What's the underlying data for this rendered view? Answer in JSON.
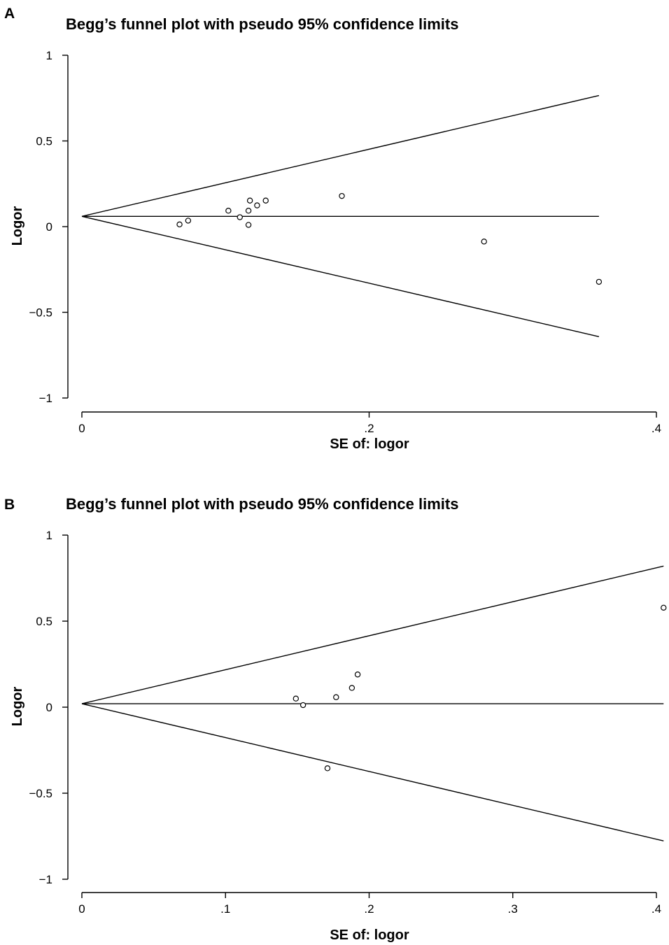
{
  "chart_data": [
    {
      "type": "scatter",
      "panel_label": "A",
      "title": "Begg’s funnel plot with pseudo 95% confidence limits",
      "xlabel": "SE of: logor",
      "ylabel": "Logor",
      "xlim": [
        0,
        0.4
      ],
      "ylim": [
        -1,
        1
      ],
      "x_ticks": [
        0,
        0.2,
        0.4
      ],
      "x_tick_labels": [
        "0",
        ".2",
        ".4"
      ],
      "y_ticks": [
        1,
        0.5,
        0,
        -0.5,
        -1
      ],
      "y_tick_labels": [
        "1",
        "0.5",
        "0",
        "−0.5",
        "−1"
      ],
      "grid": false,
      "pooled_estimate": 0.06,
      "funnel_max_se": 0.36,
      "pseudo_ci_upper_at_max_se": 0.765,
      "pseudo_ci_lower_at_max_se": -0.642,
      "points": [
        {
          "x": 0.068,
          "y": 0.013
        },
        {
          "x": 0.074,
          "y": 0.035
        },
        {
          "x": 0.102,
          "y": 0.093
        },
        {
          "x": 0.11,
          "y": 0.055
        },
        {
          "x": 0.116,
          "y": 0.01
        },
        {
          "x": 0.116,
          "y": 0.093
        },
        {
          "x": 0.117,
          "y": 0.152
        },
        {
          "x": 0.122,
          "y": 0.124
        },
        {
          "x": 0.128,
          "y": 0.152
        },
        {
          "x": 0.181,
          "y": 0.179
        },
        {
          "x": 0.28,
          "y": -0.087
        },
        {
          "x": 0.36,
          "y": -0.322
        }
      ]
    },
    {
      "type": "scatter",
      "panel_label": "B",
      "title": "Begg’s funnel plot with pseudo 95% confidence limits",
      "xlabel": "SE of: logor",
      "ylabel": "Logor",
      "xlim": [
        0,
        0.4
      ],
      "ylim": [
        -1,
        1
      ],
      "x_ticks": [
        0,
        0.1,
        0.2,
        0.3,
        0.4
      ],
      "x_tick_labels": [
        "0",
        ".1",
        ".2",
        ".3",
        ".4"
      ],
      "y_ticks": [
        1,
        0.5,
        0,
        -0.5,
        -1
      ],
      "y_tick_labels": [
        "1",
        "0.5",
        "0",
        "−0.5",
        "−1"
      ],
      "grid": false,
      "pooled_estimate": 0.02,
      "funnel_max_se": 0.405,
      "pseudo_ci_upper_at_max_se": 0.82,
      "pseudo_ci_lower_at_max_se": -0.777,
      "points": [
        {
          "x": 0.149,
          "y": 0.05
        },
        {
          "x": 0.154,
          "y": 0.012
        },
        {
          "x": 0.171,
          "y": -0.355
        },
        {
          "x": 0.177,
          "y": 0.058
        },
        {
          "x": 0.188,
          "y": 0.112
        },
        {
          "x": 0.192,
          "y": 0.19
        },
        {
          "x": 0.405,
          "y": 0.578
        }
      ]
    }
  ]
}
